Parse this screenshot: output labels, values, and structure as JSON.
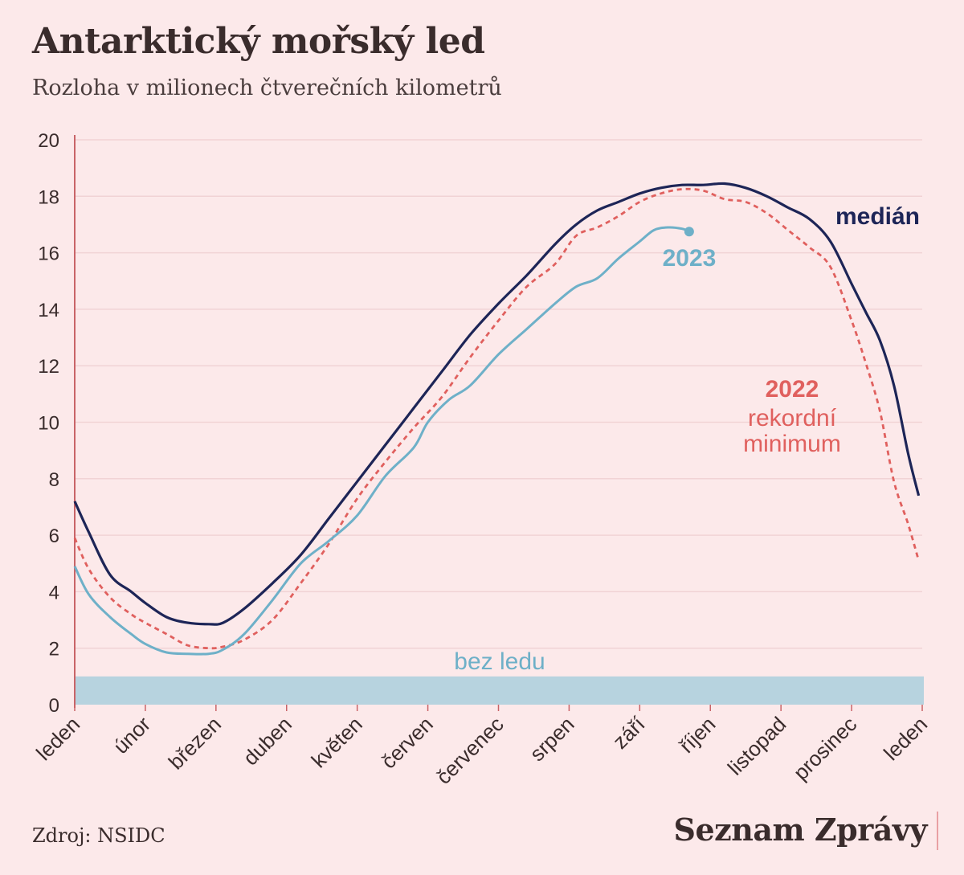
{
  "header": {
    "title": "Antarktický mořský led",
    "subtitle": "Rozloha v milionech čtverečních kilometrů"
  },
  "footer": {
    "source": "Zdroj: NSIDC",
    "logo": "Seznam Zprávy"
  },
  "colors": {
    "background": "#fce9ea",
    "median": "#1d2557",
    "record_2022": "#e0605e",
    "year_2023": "#6eb0c8",
    "no_ice_band": "#b7d3df",
    "axis": "#c96468",
    "grid": "#f1d3d5"
  },
  "chart_data": {
    "type": "line",
    "x_unit": "month",
    "xlim": [
      0,
      12
    ],
    "ylim": [
      0,
      20
    ],
    "y_ticks": [
      "0",
      "2",
      "4",
      "6",
      "8",
      "10",
      "12",
      "14",
      "16",
      "18",
      "20"
    ],
    "x_ticks": [
      "leden",
      "únor",
      "březen",
      "duben",
      "květen",
      "červen",
      "červenec",
      "srpen",
      "září",
      "říjen",
      "listopad",
      "prosinec",
      "leden"
    ],
    "grid": true,
    "band": {
      "label": "bez ledu",
      "from": 0,
      "to": 1
    },
    "series": [
      {
        "name": "medián",
        "style": "solid",
        "x": [
          0,
          0.2,
          0.5,
          0.8,
          1.0,
          1.3,
          1.6,
          1.9,
          2.1,
          2.4,
          2.8,
          3.2,
          3.6,
          4.0,
          4.4,
          4.8,
          5.2,
          5.6,
          6.0,
          6.4,
          6.8,
          7.1,
          7.4,
          7.7,
          8.0,
          8.3,
          8.6,
          8.9,
          9.2,
          9.5,
          9.8,
          10.1,
          10.4,
          10.7,
          11.0,
          11.2,
          11.4,
          11.6,
          11.8,
          11.95
        ],
        "y": [
          7.2,
          6.1,
          4.6,
          4.0,
          3.6,
          3.1,
          2.9,
          2.85,
          2.9,
          3.4,
          4.3,
          5.3,
          6.6,
          7.9,
          9.2,
          10.5,
          11.8,
          13.1,
          14.2,
          15.2,
          16.3,
          17.0,
          17.5,
          17.8,
          18.1,
          18.3,
          18.4,
          18.4,
          18.45,
          18.3,
          18.0,
          17.6,
          17.2,
          16.4,
          14.9,
          13.9,
          12.9,
          11.3,
          8.9,
          7.4
        ]
      },
      {
        "name": "2022 rekordní minimum",
        "style": "dashed",
        "x": [
          0,
          0.2,
          0.5,
          0.8,
          1.0,
          1.3,
          1.6,
          1.9,
          2.1,
          2.4,
          2.8,
          3.2,
          3.6,
          4.0,
          4.4,
          4.8,
          5.2,
          5.6,
          6.0,
          6.4,
          6.8,
          7.1,
          7.4,
          7.7,
          8.0,
          8.3,
          8.6,
          8.9,
          9.2,
          9.5,
          9.8,
          10.1,
          10.4,
          10.7,
          11.0,
          11.2,
          11.4,
          11.6,
          11.8,
          11.95
        ],
        "y": [
          5.9,
          4.8,
          3.8,
          3.2,
          2.9,
          2.5,
          2.1,
          2.0,
          2.05,
          2.3,
          3.0,
          4.3,
          5.7,
          7.3,
          8.6,
          9.8,
          10.9,
          12.3,
          13.6,
          14.8,
          15.6,
          16.6,
          16.9,
          17.3,
          17.8,
          18.1,
          18.25,
          18.2,
          17.9,
          17.8,
          17.4,
          16.8,
          16.2,
          15.5,
          13.6,
          12.1,
          10.4,
          7.9,
          6.4,
          5.1
        ]
      },
      {
        "name": "2023",
        "style": "solid",
        "x": [
          0,
          0.2,
          0.5,
          0.8,
          1.0,
          1.3,
          1.6,
          1.9,
          2.1,
          2.4,
          2.8,
          3.2,
          3.6,
          4.0,
          4.4,
          4.8,
          5.0,
          5.3,
          5.6,
          6.0,
          6.4,
          6.8,
          7.1,
          7.4,
          7.7,
          8.0,
          8.2,
          8.4,
          8.6,
          8.7
        ],
        "y": [
          4.9,
          3.9,
          3.1,
          2.5,
          2.15,
          1.85,
          1.8,
          1.8,
          1.95,
          2.5,
          3.7,
          5.0,
          5.8,
          6.7,
          8.1,
          9.1,
          10.0,
          10.8,
          11.3,
          12.4,
          13.3,
          14.2,
          14.8,
          15.1,
          15.8,
          16.4,
          16.8,
          16.9,
          16.85,
          16.75
        ]
      }
    ]
  }
}
